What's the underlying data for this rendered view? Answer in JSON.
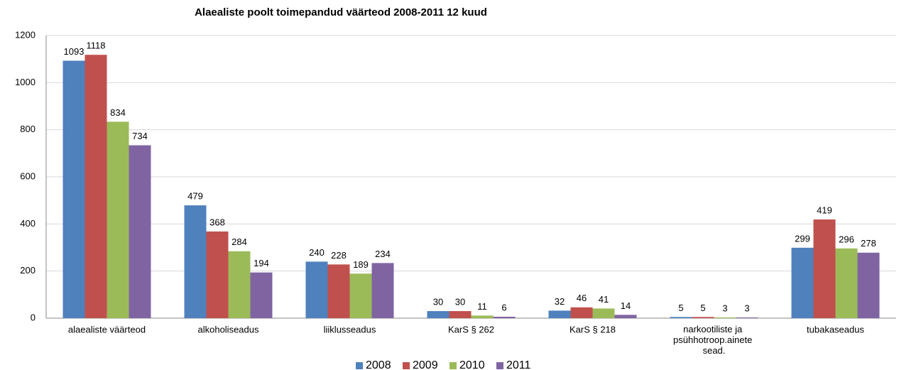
{
  "chart_data": {
    "type": "bar",
    "title": "Alaealiste poolt toimepandud väärteod 2008-2011 12 kuud",
    "categories": [
      "alaealiste väärteod",
      "alkoholiseadus",
      "liiklusseadus",
      "KarS § 262",
      "KarS § 218",
      "narkootiliste ja psühhotroop.ainete sead.",
      "tubakaseadus"
    ],
    "series": [
      {
        "name": "2008",
        "color": "#4f81bd",
        "values": [
          1093,
          479,
          240,
          30,
          32,
          5,
          299
        ]
      },
      {
        "name": "2009",
        "color": "#c0504d",
        "values": [
          1118,
          368,
          228,
          30,
          46,
          5,
          419
        ]
      },
      {
        "name": "2010",
        "color": "#9bbb59",
        "values": [
          834,
          284,
          189,
          11,
          41,
          3,
          296
        ]
      },
      {
        "name": "2011",
        "color": "#8064a2",
        "values": [
          734,
          194,
          234,
          6,
          14,
          3,
          278
        ]
      }
    ],
    "ylim": [
      0,
      1200
    ],
    "yticks": [
      0,
      200,
      400,
      600,
      800,
      1000,
      1200
    ],
    "grid": true,
    "legend": "bottom"
  }
}
